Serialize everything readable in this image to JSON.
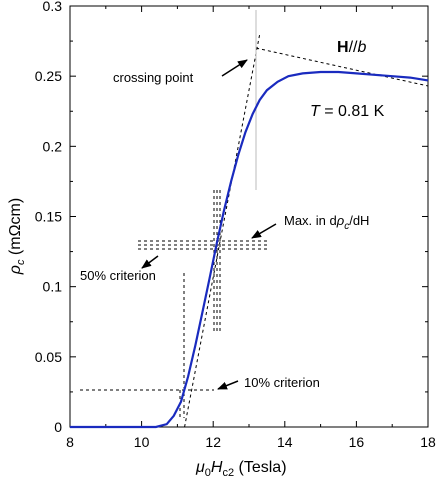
{
  "chart_data": {
    "type": "line",
    "xlabel": {
      "mu": "μ",
      "mu_sub": "0",
      "h": "H",
      "h_sub": "c2",
      "unit": " (Tesla)"
    },
    "ylabel": {
      "rho": "ρ",
      "rho_sub": "c",
      "unit": " (mΩcm)"
    },
    "xlim": [
      8,
      18
    ],
    "ylim": [
      0,
      0.3
    ],
    "xticks": [
      "8",
      "10",
      "12",
      "14",
      "16",
      "18"
    ],
    "yticks": [
      "0",
      "0.05",
      "0.1",
      "0.15",
      "0.2",
      "0.25",
      "0.3"
    ],
    "series": [
      {
        "color": "#1a2bbf",
        "x": [
          8.0,
          10.4,
          10.7,
          10.9,
          11.1,
          11.3,
          11.5,
          11.7,
          11.9,
          12.1,
          12.3,
          12.5,
          12.7,
          12.9,
          13.1,
          13.3,
          13.5,
          13.8,
          14.1,
          14.5,
          15.0,
          15.5,
          16.0,
          16.5,
          17.0,
          17.5,
          18.0
        ],
        "y": [
          0.0,
          0.0,
          0.002,
          0.008,
          0.018,
          0.036,
          0.058,
          0.082,
          0.106,
          0.131,
          0.154,
          0.175,
          0.194,
          0.21,
          0.223,
          0.233,
          0.24,
          0.246,
          0.25,
          0.252,
          0.253,
          0.253,
          0.252,
          0.251,
          0.25,
          0.249,
          0.247
        ]
      }
    ],
    "guides": [
      {
        "kind": "tangent-low",
        "x1": 11.2,
        "y1": 0.0,
        "x2": 13.3,
        "y2": 0.28
      },
      {
        "kind": "tangent-high",
        "x1": 13.2,
        "y1": 0.27,
        "x2": 18.0,
        "y2": 0.243
      }
    ],
    "annotations": {
      "field_bold": "H",
      "field_rest": "//",
      "field_axis": "b",
      "temp_var": "T",
      "temp_value": " = 0.81 K",
      "crossing": "crossing point",
      "max_prefix": "Max. in d",
      "max_rho": "ρ",
      "max_sub": "c",
      "max_suffix": "/dH",
      "crit50": "50% criterion",
      "crit10": "10% criterion"
    }
  }
}
